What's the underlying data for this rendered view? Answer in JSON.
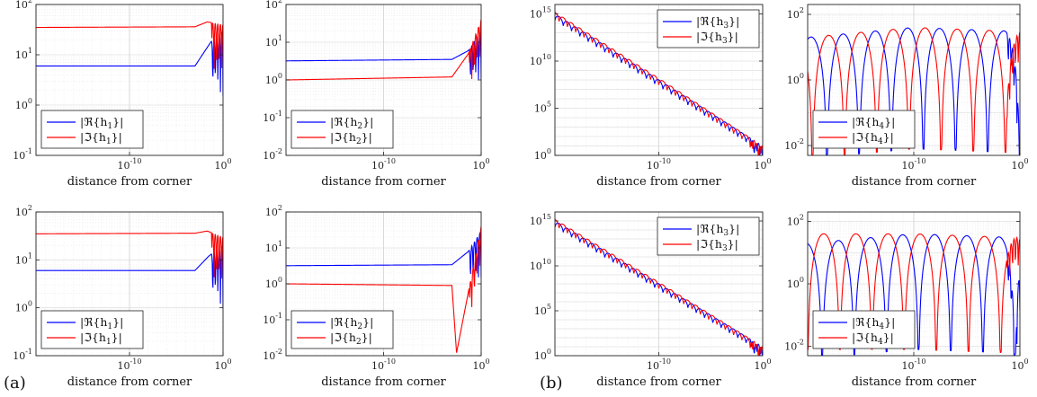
{
  "panel_labels": [
    "(a)",
    "(b)"
  ],
  "chart_data": [
    {
      "type": "line",
      "panel": "a-top-left",
      "xscale": "log",
      "yscale": "log",
      "xlim": [
        1e-20,
        1
      ],
      "ylim": [
        0.1,
        100
      ],
      "xticks": [
        "10^-10",
        "10^0"
      ],
      "yticks": [
        "10^-1",
        "10^0",
        "10^1",
        "10^2"
      ],
      "xlabel": "distance from corner",
      "legend": "bottom-left",
      "series": [
        {
          "name": "|ℜ{h_1}|",
          "color": "#0000ff",
          "values": [
            {
              "x": 1e-20,
              "y": 6
            },
            {
              "x": 0.001,
              "y": 6
            },
            {
              "x": 0.05,
              "y": 18
            },
            {
              "x": 1,
              "y": 30
            }
          ]
        },
        {
          "name": "|ℑ{h_1}|",
          "color": "#ff0000",
          "values": [
            {
              "x": 1e-20,
              "y": 35
            },
            {
              "x": 0.001,
              "y": 36
            },
            {
              "x": 0.02,
              "y": 45
            },
            {
              "x": 1,
              "y": 40
            }
          ]
        }
      ]
    },
    {
      "type": "line",
      "panel": "a-top-right",
      "xscale": "log",
      "yscale": "log",
      "xlim": [
        1e-20,
        1
      ],
      "ylim": [
        0.01,
        100
      ],
      "xticks": [
        "10^-10",
        "10^0"
      ],
      "yticks": [
        "10^-2",
        "10^-1",
        "10^0",
        "10^1",
        "10^2"
      ],
      "xlabel": "distance from corner",
      "legend": "bottom-left",
      "series": [
        {
          "name": "|ℜ{h_2}|",
          "color": "#0000ff",
          "values": [
            {
              "x": 1e-20,
              "y": 3.2
            },
            {
              "x": 0.001,
              "y": 3.5
            },
            {
              "x": 0.05,
              "y": 6
            },
            {
              "x": 1,
              "y": 20
            }
          ]
        },
        {
          "name": "|ℑ{h_2}|",
          "color": "#ff0000",
          "values": [
            {
              "x": 1e-20,
              "y": 1
            },
            {
              "x": 0.001,
              "y": 1.2
            },
            {
              "x": 0.05,
              "y": 5
            },
            {
              "x": 1,
              "y": 40
            }
          ]
        }
      ]
    },
    {
      "type": "line",
      "panel": "a-bottom-left",
      "xscale": "log",
      "yscale": "log",
      "xlim": [
        1e-20,
        1
      ],
      "ylim": [
        1,
        1e+16
      ],
      "xticks": [
        "10^-10",
        "10^0"
      ],
      "yticks": [
        "10^0",
        "10^5",
        "10^10",
        "10^15"
      ],
      "xlabel": "distance from corner",
      "legend": "top-right",
      "series": [
        {
          "name": "|ℜ{h_3}|",
          "color": "#0000ff",
          "values": [
            {
              "x": 1e-20,
              "y": 1000000000000000.0
            },
            {
              "x": 1e-10,
              "y": 100000000.0
            },
            {
              "x": 1,
              "y": 10
            }
          ]
        },
        {
          "name": "|ℑ{h_3}|",
          "color": "#ff0000",
          "values": [
            {
              "x": 1e-20,
              "y": 1500000000000000.0
            },
            {
              "x": 1e-10,
              "y": 150000000.0
            },
            {
              "x": 1,
              "y": 10
            }
          ]
        }
      ]
    },
    {
      "type": "line",
      "panel": "a-bottom-right",
      "xscale": "log",
      "yscale": "log",
      "xlim": [
        1e-20,
        1
      ],
      "ylim": [
        0.005,
        200
      ],
      "xticks": [
        "10^-10",
        "10^0"
      ],
      "yticks": [
        "10^-2",
        "10^0",
        "10^2"
      ],
      "xlabel": "distance from corner",
      "legend": "bottom-left",
      "series": [
        {
          "name": "|ℜ{h_4}|",
          "color": "#0000ff",
          "values": [
            {
              "x": 1e-20,
              "y": 20
            },
            {
              "x": 1e-10,
              "y": 40
            },
            {
              "x": 1,
              "y": 30
            }
          ]
        },
        {
          "name": "|ℑ{h_4}|",
          "color": "#ff0000",
          "values": [
            {
              "x": 1e-20,
              "y": 20
            },
            {
              "x": 1e-10,
              "y": 40
            },
            {
              "x": 1,
              "y": 30
            }
          ]
        }
      ]
    },
    {
      "type": "line",
      "panel": "b-top-left",
      "xscale": "log",
      "yscale": "log",
      "xlim": [
        1e-20,
        1
      ],
      "ylim": [
        0.1,
        100
      ],
      "xticks": [
        "10^-10",
        "10^0"
      ],
      "yticks": [
        "10^-1",
        "10^0",
        "10^1",
        "10^2"
      ],
      "xlabel": "distance from corner",
      "legend": "bottom-left",
      "series": [
        {
          "name": "|ℜ{h_1}|",
          "color": "#0000ff",
          "values": [
            {
              "x": 1e-20,
              "y": 6
            },
            {
              "x": 0.001,
              "y": 6
            },
            {
              "x": 0.03,
              "y": 12
            },
            {
              "x": 1,
              "y": 20
            }
          ]
        },
        {
          "name": "|ℑ{h_1}|",
          "color": "#ff0000",
          "values": [
            {
              "x": 1e-20,
              "y": 35
            },
            {
              "x": 0.001,
              "y": 36
            },
            {
              "x": 0.02,
              "y": 40
            },
            {
              "x": 1,
              "y": 30
            }
          ]
        }
      ]
    },
    {
      "type": "line",
      "panel": "b-top-right",
      "xscale": "log",
      "yscale": "log",
      "xlim": [
        1e-20,
        1
      ],
      "ylim": [
        0.01,
        100
      ],
      "xticks": [
        "10^-10",
        "10^0"
      ],
      "yticks": [
        "10^-2",
        "10^-1",
        "10^0",
        "10^1",
        "10^2"
      ],
      "xlabel": "distance from corner",
      "legend": "bottom-left",
      "series": [
        {
          "name": "|ℜ{h_2}|",
          "color": "#0000ff",
          "values": [
            {
              "x": 1e-20,
              "y": 3.2
            },
            {
              "x": 0.001,
              "y": 3.4
            },
            {
              "x": 0.05,
              "y": 8
            },
            {
              "x": 1,
              "y": 30
            }
          ]
        },
        {
          "name": "|ℑ{h_2}|",
          "color": "#ff0000",
          "values": [
            {
              "x": 1e-20,
              "y": 1
            },
            {
              "x": 0.001,
              "y": 0.9
            },
            {
              "x": 0.003,
              "y": 0.012
            },
            {
              "x": 1,
              "y": 40
            }
          ]
        }
      ]
    },
    {
      "type": "line",
      "panel": "b-bottom-left",
      "xscale": "log",
      "yscale": "log",
      "xlim": [
        1e-20,
        1
      ],
      "ylim": [
        1,
        1e+16
      ],
      "xticks": [
        "10^-10",
        "10^0"
      ],
      "yticks": [
        "10^0",
        "10^5",
        "10^10",
        "10^15"
      ],
      "xlabel": "distance from corner",
      "legend": "top-right",
      "series": [
        {
          "name": "|ℜ{h_3}|",
          "color": "#0000ff",
          "values": [
            {
              "x": 1e-20,
              "y": 1000000000000000.0
            },
            {
              "x": 1e-10,
              "y": 100000000.0
            },
            {
              "x": 1,
              "y": 10
            }
          ]
        },
        {
          "name": "|ℑ{h_3}|",
          "color": "#ff0000",
          "values": [
            {
              "x": 1e-20,
              "y": 1500000000000000.0
            },
            {
              "x": 1e-10,
              "y": 150000000.0
            },
            {
              "x": 1,
              "y": 10
            }
          ]
        }
      ]
    },
    {
      "type": "line",
      "panel": "b-bottom-right",
      "xscale": "log",
      "yscale": "log",
      "xlim": [
        1e-20,
        1
      ],
      "ylim": [
        0.005,
        200
      ],
      "xticks": [
        "10^-10",
        "10^0"
      ],
      "yticks": [
        "10^-2",
        "10^0",
        "10^2"
      ],
      "xlabel": "distance from corner",
      "legend": "bottom-left",
      "series": [
        {
          "name": "|ℜ{h_4}|",
          "color": "#0000ff",
          "values": [
            {
              "x": 1e-20,
              "y": 20
            },
            {
              "x": 1e-10,
              "y": 40
            },
            {
              "x": 1,
              "y": 30
            }
          ]
        },
        {
          "name": "|ℑ{h_4}|",
          "color": "#ff0000",
          "values": [
            {
              "x": 1e-20,
              "y": 40
            },
            {
              "x": 1e-10,
              "y": 40
            },
            {
              "x": 1,
              "y": 30
            }
          ]
        }
      ]
    }
  ]
}
